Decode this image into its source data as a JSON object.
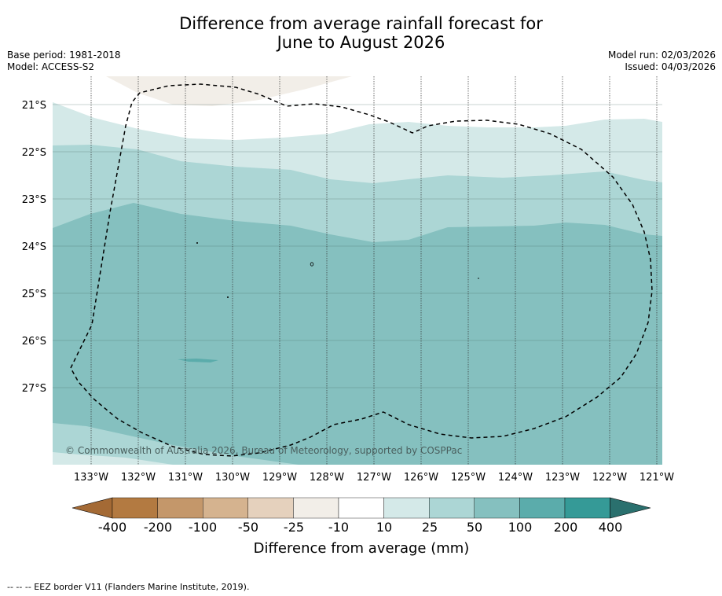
{
  "title": {
    "line1": "Difference from average rainfall forecast for",
    "line2": "June to August 2026"
  },
  "meta": {
    "base_period": "Base period: 1981-2018",
    "model": "Model: ACCESS-S2",
    "model_run": "Model run: 02/03/2026",
    "issued": "Issued: 04/03/2026"
  },
  "map": {
    "lat_labels": [
      "21°S",
      "22°S",
      "23°S",
      "24°S",
      "25°S",
      "26°S",
      "27°S"
    ],
    "lon_labels": [
      "133°W",
      "132°W",
      "131°W",
      "130°W",
      "129°W",
      "128°W",
      "127°W",
      "126°W",
      "125°W",
      "124°W",
      "123°W",
      "122°W",
      "121°W"
    ],
    "copyright": "© Commonwealth of Australia 2026, Bureau of Meteorology, supported by COSPPac"
  },
  "colorbar": {
    "ticks": [
      "-400",
      "-200",
      "-100",
      "-50",
      "-25",
      "-10",
      "10",
      "25",
      "50",
      "100",
      "200",
      "400"
    ],
    "label": "Difference from average (mm)",
    "colors": [
      "#a46a35",
      "#b37a41",
      "#c4976a",
      "#d5b38f",
      "#e5d1bd",
      "#f2eee8",
      "#ffffff",
      "#d4e9e8",
      "#acd6d5",
      "#85c0bf",
      "#5bacab",
      "#359a97",
      "#2a706e"
    ]
  },
  "footer": {
    "eez_note": "--  --  -- EEZ border V11 (Flanders Marine Institute, 2019)."
  }
}
